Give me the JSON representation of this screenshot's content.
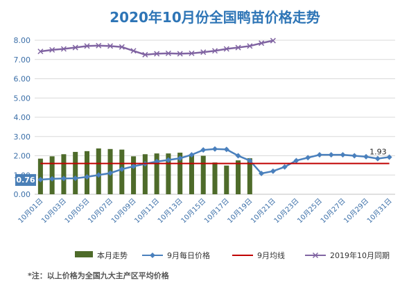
{
  "chart_data": {
    "type": "bar+line",
    "title": "2020年10月份全国鸭苗价格走势",
    "ylim": [
      0,
      8
    ],
    "yticks": [
      "0.00",
      "1.00",
      "2.00",
      "3.00",
      "4.00",
      "5.00",
      "6.00",
      "7.00",
      "8.00"
    ],
    "categories": [
      "10月01日",
      "10月02日",
      "10月03日",
      "10月04日",
      "10月05日",
      "10月06日",
      "10月07日",
      "10月08日",
      "10月09日",
      "10月10日",
      "10月11日",
      "10月12日",
      "10月13日",
      "10月14日",
      "10月15日",
      "10月16日",
      "10月17日",
      "10月18日",
      "10月19日",
      "10月20日",
      "10月21日",
      "10月22日",
      "10月23日",
      "10月24日",
      "10月25日",
      "10月26日",
      "10月27日",
      "10月28日",
      "10月29日",
      "10月30日",
      "10月31日"
    ],
    "xtick_labels": [
      "10月01日",
      "",
      "10月03日",
      "",
      "10月05日",
      "",
      "10月07日",
      "",
      "10月09日",
      "",
      "10月11日",
      "",
      "10月13日",
      "",
      "10月15日",
      "",
      "10月17日",
      "",
      "10月19日",
      "",
      "10月21日",
      "",
      "10月23日",
      "",
      "10月25日",
      "",
      "10月27日",
      "",
      "10月29日",
      "",
      "10月31日"
    ],
    "series": [
      {
        "name": "本月走势",
        "kind": "bar",
        "color": "#4e6b2a",
        "values": [
          1.85,
          1.97,
          2.08,
          2.2,
          2.24,
          2.38,
          2.35,
          2.32,
          1.97,
          2.08,
          2.12,
          2.12,
          2.16,
          2.05,
          2.0,
          1.65,
          1.49,
          1.76,
          1.87,
          null,
          null,
          null,
          null,
          null,
          null,
          null,
          null,
          null,
          null,
          null,
          null
        ]
      },
      {
        "name": "9月每日价格",
        "kind": "line",
        "color": "#4a80bd",
        "marker": "diamond",
        "values": [
          0.76,
          0.8,
          0.82,
          0.83,
          0.9,
          1.0,
          1.1,
          1.3,
          1.45,
          1.58,
          1.7,
          1.78,
          1.87,
          2.05,
          2.3,
          2.35,
          2.33,
          2.0,
          1.75,
          1.08,
          1.2,
          1.42,
          1.75,
          1.9,
          2.05,
          2.05,
          2.05,
          2.0,
          1.95,
          1.85,
          1.93
        ]
      },
      {
        "name": "9月均线",
        "kind": "line",
        "color": "#c00000",
        "values": [
          1.6,
          1.6,
          1.6,
          1.6,
          1.6,
          1.6,
          1.6,
          1.6,
          1.6,
          1.6,
          1.6,
          1.6,
          1.6,
          1.6,
          1.6,
          1.6,
          1.6,
          1.6,
          1.6,
          1.6,
          1.6,
          1.6,
          1.6,
          1.6,
          1.6,
          1.6,
          1.6,
          1.6,
          1.6,
          1.6,
          1.6
        ]
      },
      {
        "name": "2019年10月同期",
        "kind": "line",
        "color": "#8064a2",
        "marker": "x",
        "values": [
          7.42,
          7.5,
          7.55,
          7.62,
          7.7,
          7.72,
          7.7,
          7.65,
          7.45,
          7.25,
          7.3,
          7.32,
          7.3,
          7.32,
          7.38,
          7.45,
          7.55,
          7.62,
          7.7,
          7.85,
          7.98,
          null,
          null,
          null,
          null,
          null,
          null,
          null,
          null,
          null,
          null
        ]
      }
    ],
    "data_labels": {
      "start": "0.76",
      "end": "1.93"
    },
    "footnote": "*注：以上价格为全国九大主产区平均价格"
  }
}
